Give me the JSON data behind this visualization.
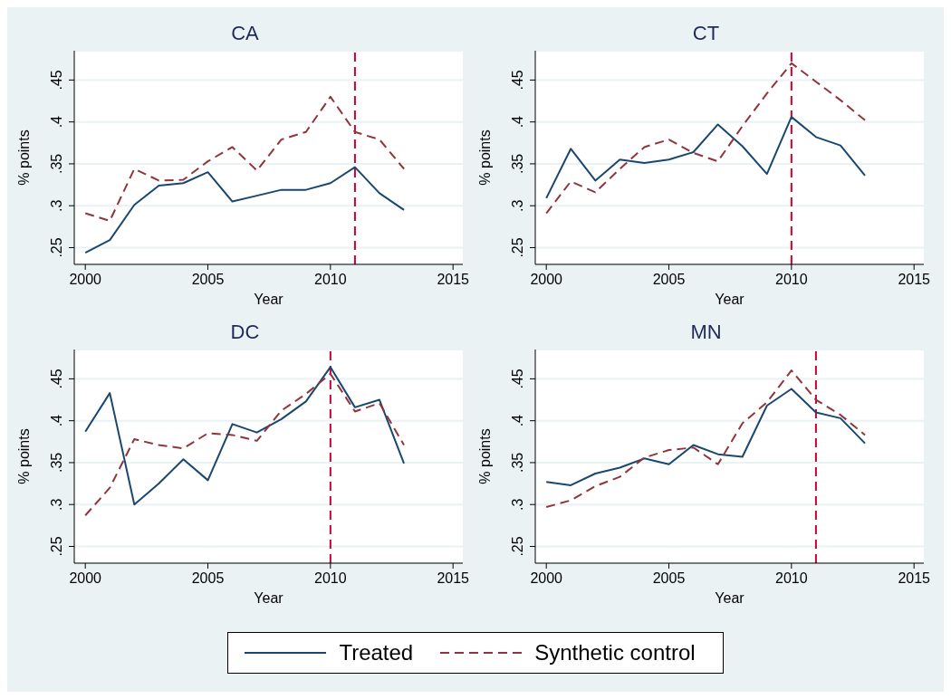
{
  "chart_data": [
    {
      "type": "line",
      "title": "CA",
      "xlabel": "Year",
      "ylabel": "% points",
      "x": [
        2000,
        2001,
        2002,
        2003,
        2004,
        2005,
        2006,
        2007,
        2008,
        2009,
        2010,
        2011,
        2012,
        2013
      ],
      "xlim": [
        1999.55,
        2015.4
      ],
      "xticks": [
        2000,
        2005,
        2010,
        2015
      ],
      "ylim": [
        0.23,
        0.485
      ],
      "yticks": [
        {
          "value": 0.25,
          "label": ".25"
        },
        {
          "value": 0.3,
          "label": ".3"
        },
        {
          "value": 0.35,
          "label": ".35"
        },
        {
          "value": 0.4,
          "label": ".4"
        },
        {
          "value": 0.45,
          "label": ".45"
        }
      ],
      "grid": "y",
      "legend": false,
      "marker": "none",
      "series": [
        {
          "color": "#1a476f",
          "line_style": "solid",
          "values": [
            0.244,
            0.259,
            0.301,
            0.324,
            0.327,
            0.34,
            0.305,
            0.312,
            0.319,
            0.319,
            0.327,
            0.346,
            0.315,
            0.295
          ]
        },
        {
          "color": "#90353b",
          "line_style": "dashed",
          "values": [
            0.291,
            0.282,
            0.344,
            0.33,
            0.331,
            0.353,
            0.37,
            0.342,
            0.379,
            0.388,
            0.43,
            0.388,
            0.379,
            0.344
          ]
        }
      ],
      "ref_lines": [
        {
          "axis": "x",
          "value": 2011,
          "color": "#c10534",
          "line_style": "dashed"
        }
      ]
    },
    {
      "type": "line",
      "title": "CT",
      "xlabel": "Year",
      "ylabel": "% points",
      "x": [
        2000,
        2001,
        2002,
        2003,
        2004,
        2005,
        2006,
        2007,
        2008,
        2009,
        2010,
        2011,
        2012,
        2013
      ],
      "xlim": [
        1999.55,
        2015.4
      ],
      "xticks": [
        2000,
        2005,
        2010,
        2015
      ],
      "ylim": [
        0.23,
        0.485
      ],
      "yticks": [
        {
          "value": 0.25,
          "label": ".25"
        },
        {
          "value": 0.3,
          "label": ".3"
        },
        {
          "value": 0.35,
          "label": ".35"
        },
        {
          "value": 0.4,
          "label": ".4"
        },
        {
          "value": 0.45,
          "label": ".45"
        }
      ],
      "grid": "y",
      "legend": false,
      "marker": "none",
      "series": [
        {
          "color": "#1a476f",
          "line_style": "solid",
          "values": [
            0.309,
            0.368,
            0.33,
            0.355,
            0.351,
            0.355,
            0.364,
            0.397,
            0.371,
            0.338,
            0.406,
            0.382,
            0.372,
            0.336
          ]
        },
        {
          "color": "#90353b",
          "line_style": "dashed",
          "values": [
            0.291,
            0.329,
            0.316,
            0.344,
            0.37,
            0.379,
            0.363,
            0.353,
            0.395,
            0.434,
            0.47,
            0.448,
            0.426,
            0.402
          ]
        }
      ],
      "ref_lines": [
        {
          "axis": "x",
          "value": 2010,
          "color": "#c10534",
          "line_style": "dashed"
        }
      ]
    },
    {
      "type": "line",
      "title": "DC",
      "xlabel": "Year",
      "ylabel": "% points",
      "x": [
        2000,
        2001,
        2002,
        2003,
        2004,
        2005,
        2006,
        2007,
        2008,
        2009,
        2010,
        2011,
        2012,
        2013
      ],
      "xlim": [
        1999.55,
        2015.4
      ],
      "xticks": [
        2000,
        2005,
        2010,
        2015
      ],
      "ylim": [
        0.23,
        0.485
      ],
      "yticks": [
        {
          "value": 0.25,
          "label": ".25"
        },
        {
          "value": 0.3,
          "label": ".3"
        },
        {
          "value": 0.35,
          "label": ".35"
        },
        {
          "value": 0.4,
          "label": ".4"
        },
        {
          "value": 0.45,
          "label": ".45"
        }
      ],
      "grid": "y",
      "legend": false,
      "marker": "none",
      "series": [
        {
          "color": "#1a476f",
          "line_style": "solid",
          "values": [
            0.387,
            0.433,
            0.3,
            0.325,
            0.354,
            0.329,
            0.396,
            0.386,
            0.402,
            0.423,
            0.464,
            0.416,
            0.425,
            0.349
          ]
        },
        {
          "color": "#90353b",
          "line_style": "dashed",
          "values": [
            0.287,
            0.32,
            0.378,
            0.371,
            0.367,
            0.385,
            0.383,
            0.376,
            0.412,
            0.432,
            0.456,
            0.411,
            0.421,
            0.371
          ]
        }
      ],
      "ref_lines": [
        {
          "axis": "x",
          "value": 2010,
          "color": "#c10534",
          "line_style": "dashed"
        }
      ]
    },
    {
      "type": "line",
      "title": "MN",
      "xlabel": "Year",
      "ylabel": "% points",
      "x": [
        2000,
        2001,
        2002,
        2003,
        2004,
        2005,
        2006,
        2007,
        2008,
        2009,
        2010,
        2011,
        2012,
        2013
      ],
      "xlim": [
        1999.55,
        2015.4
      ],
      "xticks": [
        2000,
        2005,
        2010,
        2015
      ],
      "ylim": [
        0.23,
        0.485
      ],
      "yticks": [
        {
          "value": 0.25,
          "label": ".25"
        },
        {
          "value": 0.3,
          "label": ".3"
        },
        {
          "value": 0.35,
          "label": ".35"
        },
        {
          "value": 0.4,
          "label": ".4"
        },
        {
          "value": 0.45,
          "label": ".45"
        }
      ],
      "grid": "y",
      "legend": "bottom",
      "marker": "none",
      "series": [
        {
          "name": "Treated",
          "color": "#1a476f",
          "line_style": "solid",
          "values": [
            0.327,
            0.323,
            0.337,
            0.344,
            0.355,
            0.348,
            0.371,
            0.36,
            0.357,
            0.418,
            0.438,
            0.41,
            0.403,
            0.373
          ]
        },
        {
          "name": "Synthetic control",
          "color": "#90353b",
          "line_style": "dashed",
          "values": [
            0.297,
            0.305,
            0.322,
            0.333,
            0.356,
            0.365,
            0.368,
            0.348,
            0.397,
            0.422,
            0.46,
            0.425,
            0.407,
            0.383
          ]
        }
      ],
      "ref_lines": [
        {
          "axis": "x",
          "value": 2011,
          "color": "#c10534",
          "line_style": "dashed"
        }
      ]
    }
  ]
}
